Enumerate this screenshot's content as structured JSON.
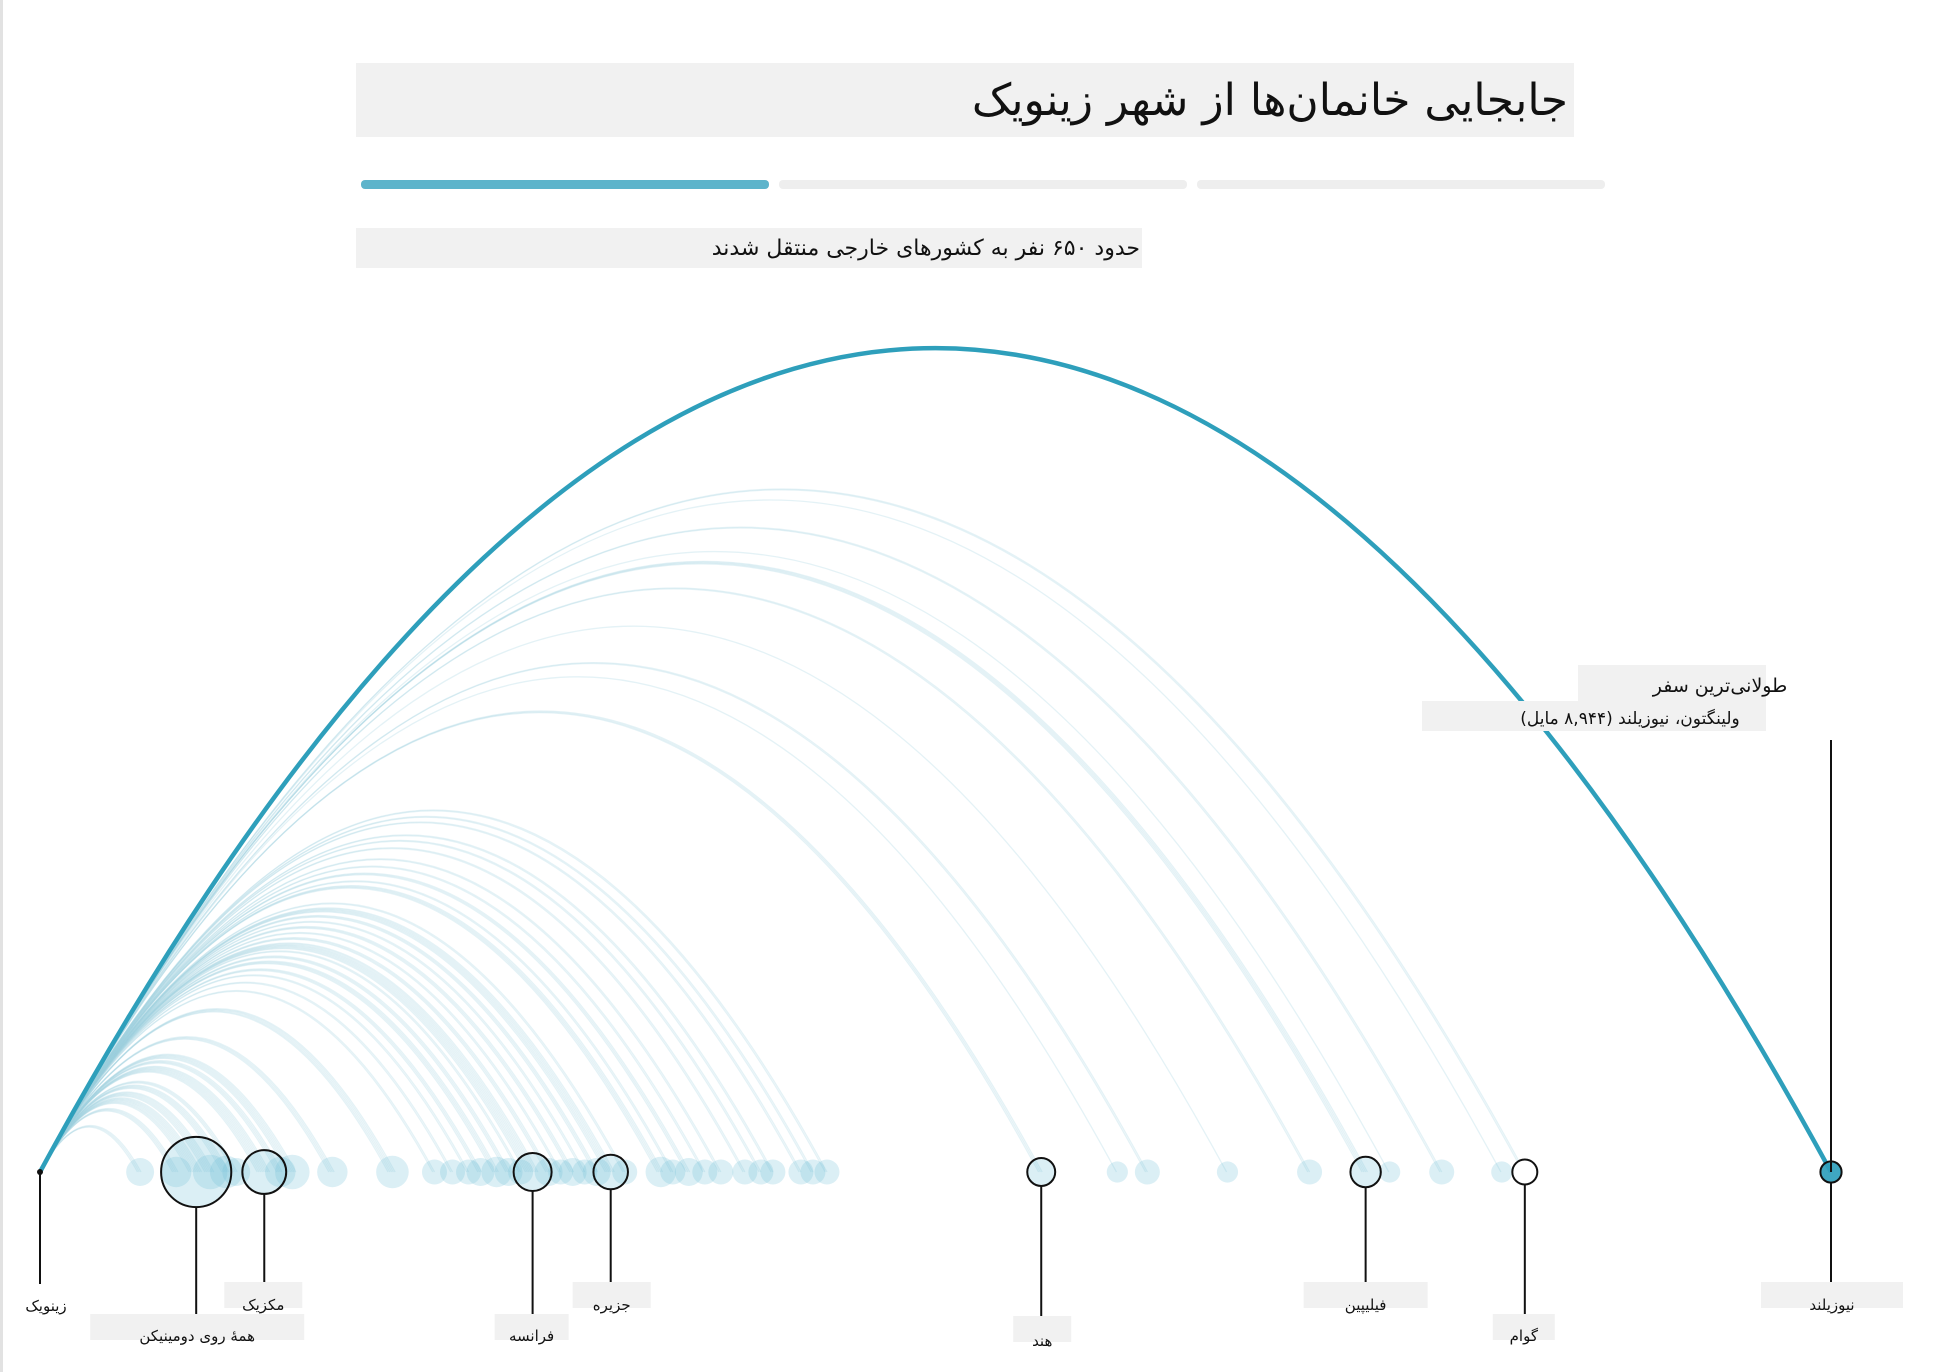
{
  "title": "جابجایی خانمان‌ها از شهر زینویک",
  "subtitle": "حدود ۶۵۰ نفر به کشورهای خارجی منتقل شدند",
  "progress": {
    "steps": 3,
    "active": 1
  },
  "annotation": {
    "line1": "طولانی‌ترین سفر",
    "line2": "ولینگتون، نیوزیلند (۸,۹۴۴ مایل)"
  },
  "colors": {
    "accent": "#2e9fbb",
    "arc": "#9ed1e0",
    "dot": "#6fbfd6",
    "progress_active": "#5db4cb"
  },
  "chart_data": {
    "type": "arc",
    "origin": {
      "name": "زینویک",
      "x": 0
    },
    "highlight": {
      "name": "نیوزیلند",
      "x": 8944
    },
    "x_range": [
      0,
      9000
    ],
    "labeled": [
      {
        "name": "زینویک",
        "x": 0
      },
      {
        "name": "همهٔ روی دومینیکن",
        "x": 780
      },
      {
        "name": "مکزیک",
        "x": 1120
      },
      {
        "name": "فرانسه",
        "x": 2460
      },
      {
        "name": "جزیره",
        "x": 2850
      },
      {
        "name": "هند",
        "x": 5000
      },
      {
        "name": "فیلیپین",
        "x": 6620
      },
      {
        "name": "گوام",
        "x": 7415
      },
      {
        "name": "نیوزیلند",
        "x": 8944
      }
    ],
    "destinations": [
      {
        "x": 500,
        "n": 3
      },
      {
        "x": 680,
        "n": 4
      },
      {
        "x": 780,
        "n": 40
      },
      {
        "x": 850,
        "n": 6
      },
      {
        "x": 930,
        "n": 5
      },
      {
        "x": 980,
        "n": 3
      },
      {
        "x": 1120,
        "n": 12
      },
      {
        "x": 1200,
        "n": 4
      },
      {
        "x": 1260,
        "n": 6
      },
      {
        "x": 1460,
        "n": 4
      },
      {
        "x": 1760,
        "n": 5
      },
      {
        "x": 1970,
        "n": 2
      },
      {
        "x": 2060,
        "n": 2
      },
      {
        "x": 2140,
        "n": 2
      },
      {
        "x": 2200,
        "n": 3
      },
      {
        "x": 2280,
        "n": 4
      },
      {
        "x": 2340,
        "n": 3
      },
      {
        "x": 2400,
        "n": 2
      },
      {
        "x": 2460,
        "n": 8
      },
      {
        "x": 2540,
        "n": 3
      },
      {
        "x": 2600,
        "n": 2
      },
      {
        "x": 2660,
        "n": 3
      },
      {
        "x": 2720,
        "n": 2
      },
      {
        "x": 2780,
        "n": 3
      },
      {
        "x": 2850,
        "n": 6
      },
      {
        "x": 2920,
        "n": 2
      },
      {
        "x": 3100,
        "n": 4
      },
      {
        "x": 3160,
        "n": 2
      },
      {
        "x": 3240,
        "n": 3
      },
      {
        "x": 3320,
        "n": 2
      },
      {
        "x": 3400,
        "n": 2
      },
      {
        "x": 3520,
        "n": 2
      },
      {
        "x": 3600,
        "n": 2
      },
      {
        "x": 3660,
        "n": 2
      },
      {
        "x": 3800,
        "n": 2
      },
      {
        "x": 3860,
        "n": 2
      },
      {
        "x": 3930,
        "n": 2
      },
      {
        "x": 5000,
        "n": 3
      },
      {
        "x": 5380,
        "n": 1
      },
      {
        "x": 5530,
        "n": 2
      },
      {
        "x": 5930,
        "n": 1
      },
      {
        "x": 6340,
        "n": 2
      },
      {
        "x": 6620,
        "n": 4
      },
      {
        "x": 6740,
        "n": 1
      },
      {
        "x": 7000,
        "n": 2
      },
      {
        "x": 7300,
        "n": 1
      },
      {
        "x": 7415,
        "n": 2
      },
      {
        "x": 8944,
        "n": 1
      }
    ]
  }
}
